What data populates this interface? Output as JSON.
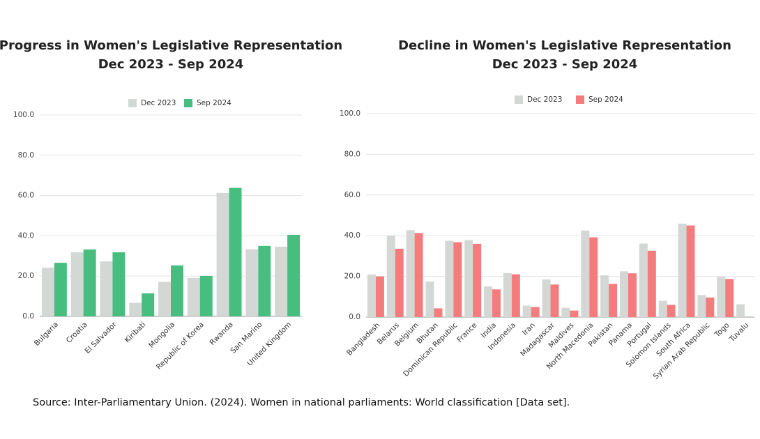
{
  "chart_data": [
    {
      "type": "bar",
      "title": "Progress in Women's Legislative Representation",
      "subtitle": "Dec 2023 - Sep 2024",
      "categories": [
        "Bulgaria",
        "Croatia",
        "El Salvador",
        "Kiribati",
        "Mongolia",
        "Republic of Korea",
        "Rwanda",
        "San Marino",
        "United Kingdom"
      ],
      "series": [
        {
          "name": "Dec 2023",
          "color": "#d3d8d5",
          "values": [
            24.2,
            31.8,
            27.3,
            6.7,
            17.1,
            19.1,
            61.3,
            33.3,
            34.6
          ]
        },
        {
          "name": "Sep 2024",
          "color": "#47bd7f",
          "values": [
            26.6,
            33.2,
            31.8,
            11.4,
            25.3,
            20.1,
            63.8,
            35.0,
            40.5
          ]
        }
      ],
      "ylim": [
        0,
        100
      ],
      "yticks": [
        {
          "value": 0,
          "label": "0.0"
        },
        {
          "value": 20,
          "label": "20.0"
        },
        {
          "value": 40,
          "label": "40.0"
        },
        {
          "value": 60,
          "label": "60.0"
        },
        {
          "value": 80,
          "label": "80.0"
        },
        {
          "value": 100,
          "label": "100.0"
        }
      ],
      "grid": true,
      "legend": "top"
    },
    {
      "type": "bar",
      "title": "Decline in Women's Legislative Representation",
      "subtitle": "Dec 2023 - Sep 2024",
      "categories": [
        "Bangladesh",
        "Belarus",
        "Belgium",
        "Bhutan",
        "Dominican Republic",
        "France",
        "India",
        "Indonesia",
        "Iran",
        "Madagascar",
        "Maldives",
        "North Macedonia",
        "Pakistan",
        "Panama",
        "Portugal",
        "Solomon Islands",
        "South Africa",
        "Syrian Arab Republic",
        "Togo",
        "Tuvalu"
      ],
      "series": [
        {
          "name": "Dec 2023",
          "color": "#d3d8d5",
          "values": [
            20.9,
            40.0,
            42.7,
            17.4,
            37.5,
            37.8,
            15.1,
            21.6,
            5.6,
            18.5,
            4.6,
            42.5,
            20.5,
            22.5,
            36.1,
            8.0,
            45.9,
            10.8,
            19.8,
            6.3
          ]
        },
        {
          "name": "Sep 2024",
          "color": "#f47c7c",
          "values": [
            20.0,
            33.6,
            41.3,
            4.3,
            36.8,
            36.0,
            13.6,
            21.0,
            4.9,
            16.0,
            3.2,
            39.2,
            16.3,
            21.5,
            32.6,
            6.0,
            45.0,
            9.6,
            18.7,
            null
          ]
        }
      ],
      "ylim": [
        0,
        100
      ],
      "yticks": [
        {
          "value": 0,
          "label": "0.0"
        },
        {
          "value": 20,
          "label": "20.0"
        },
        {
          "value": 40,
          "label": "40.0"
        },
        {
          "value": 60,
          "label": "60.0"
        },
        {
          "value": 80,
          "label": "80.0"
        },
        {
          "value": 100,
          "label": "100.0"
        }
      ],
      "grid": true,
      "legend": "top"
    }
  ],
  "source": "Source: Inter-Parliamentary Union. (2024). Women in national parliaments: World classification [Data set]."
}
